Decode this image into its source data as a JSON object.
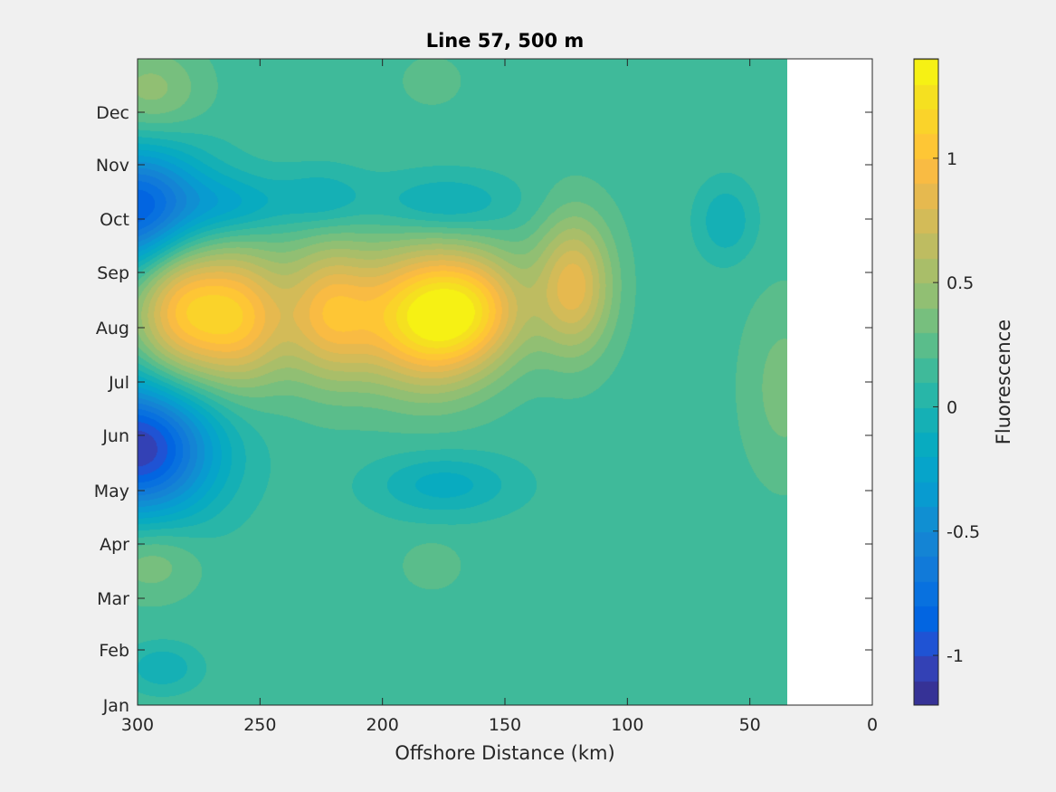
{
  "chart_data": {
    "type": "contour",
    "title": "Line 57, 500 m",
    "xlabel": "Offshore Distance (km)",
    "ylabel": "",
    "xlim": [
      0,
      300
    ],
    "x_reversed": true,
    "x_ticks": [
      300,
      250,
      200,
      150,
      100,
      50,
      0
    ],
    "y_ticks": [
      "Jan",
      "Feb",
      "Mar",
      "Apr",
      "May",
      "Jun",
      "Jul",
      "Aug",
      "Sep",
      "Oct",
      "Nov",
      "Dec"
    ],
    "data_x_extent": [
      35,
      300
    ],
    "colorbar": {
      "label": "Fluorescence",
      "range": [
        -1.2,
        1.4
      ],
      "ticks": [
        1,
        0.5,
        0,
        -0.5,
        -1
      ],
      "tick_labels": [
        "1",
        "0.5",
        "0",
        "-0.5",
        "-1"
      ],
      "levels": 26,
      "colormap": "parula"
    },
    "background_value": 0.15,
    "features": [
      {
        "x_km": 182,
        "month": 6.8,
        "value": 1.3
      },
      {
        "x_km": 283,
        "month": 7.0,
        "value": 0.95
      },
      {
        "x_km": 258,
        "month": 6.8,
        "value": 0.95
      },
      {
        "x_km": 222,
        "month": 6.9,
        "value": 0.85
      },
      {
        "x_km": 122,
        "month": 7.4,
        "value": 0.85
      },
      {
        "x_km": 160,
        "month": 7.0,
        "value": 0.6
      },
      {
        "x_km": 300,
        "month": 4.4,
        "value": -1.1
      },
      {
        "x_km": 300,
        "month": 8.8,
        "value": -0.95
      },
      {
        "x_km": 260,
        "month": 8.9,
        "value": -0.15
      },
      {
        "x_km": 225,
        "month": 9.0,
        "value": -0.1
      },
      {
        "x_km": 175,
        "month": 8.9,
        "value": -0.15
      },
      {
        "x_km": 175,
        "month": 3.7,
        "value": -0.15
      },
      {
        "x_km": 60,
        "month": 8.6,
        "value": -0.1
      },
      {
        "x_km": 295,
        "month": 11.0,
        "value": 0.45
      },
      {
        "x_km": 295,
        "month": 2.3,
        "value": 0.4
      },
      {
        "x_km": 36,
        "month": 5.5,
        "value": 0.35
      },
      {
        "x_km": 180,
        "month": 11.2,
        "value": 0.3
      },
      {
        "x_km": 180,
        "month": 2.2,
        "value": 0.3
      },
      {
        "x_km": 290,
        "month": 0.3,
        "value": -0.1
      }
    ]
  }
}
